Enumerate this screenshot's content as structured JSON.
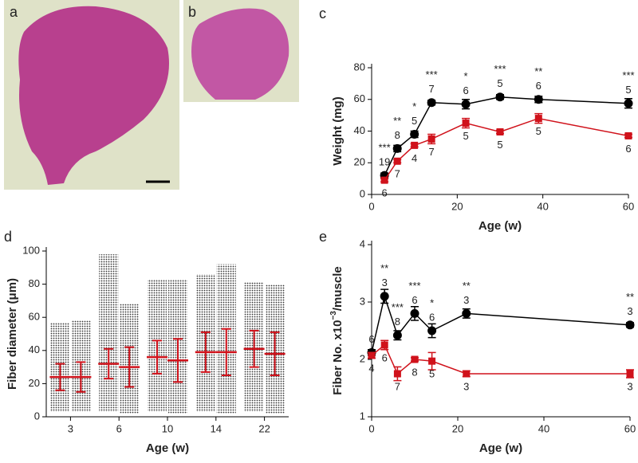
{
  "images": [
    {
      "label": "a"
    },
    {
      "label": "b"
    }
  ],
  "chart_data": [
    {
      "type": "line",
      "label": "c",
      "ylabel": "Weight (mg)",
      "xlabel": "Age (w)",
      "xlim": [
        0,
        60
      ],
      "xticks": [
        0,
        20,
        40,
        60
      ],
      "ylim": [
        0,
        80
      ],
      "yticks": [
        0,
        20,
        40,
        60,
        80
      ],
      "series": [
        {
          "color": "#000000",
          "marker": "circle",
          "x": [
            3,
            6,
            10,
            14,
            22,
            30,
            39,
            60
          ],
          "values": [
            12,
            29,
            38,
            58,
            57,
            61.5,
            60,
            57.5
          ],
          "errors": [
            1.5,
            2,
            2,
            1.5,
            3,
            1.5,
            2,
            3
          ],
          "n": [
            19,
            8,
            5,
            7,
            6,
            5,
            6,
            5
          ]
        },
        {
          "color": "#d0121b",
          "marker": "square",
          "x": [
            3,
            6,
            10,
            14,
            22,
            30,
            39,
            60
          ],
          "values": [
            9,
            21,
            31,
            35,
            45,
            39.5,
            48,
            37
          ],
          "errors": [
            1,
            1,
            1,
            3,
            3,
            1,
            3,
            1
          ],
          "n": [
            6,
            7,
            4,
            7,
            5,
            5,
            5,
            6
          ]
        }
      ],
      "significance": {
        "x": [
          3,
          6,
          10,
          14,
          22,
          30,
          39,
          60
        ],
        "labels": [
          "***",
          "**",
          "*",
          "***",
          "*",
          "***",
          "**",
          "***"
        ]
      }
    },
    {
      "type": "dotplot",
      "label": "d",
      "ylabel": "Fiber diameter (μm)",
      "xlabel": "Age (w)",
      "categories": [
        "3",
        "6",
        "10",
        "14",
        "22"
      ],
      "ylim": [
        0,
        100
      ],
      "yticks": [
        0,
        20,
        40,
        60,
        80,
        100
      ],
      "summary_color": "#d0121b",
      "groups": [
        {
          "means": [
            24,
            32,
            36,
            39,
            41
          ],
          "sds": [
            8,
            9,
            10,
            12,
            11
          ],
          "mins": [
            3,
            3,
            3,
            3,
            3
          ],
          "maxs": [
            57,
            98,
            83,
            86,
            81
          ]
        },
        {
          "means": [
            24,
            30,
            34,
            39,
            38
          ],
          "sds": [
            9,
            12,
            13,
            14,
            13
          ],
          "mins": [
            3,
            2,
            2,
            2,
            2
          ],
          "maxs": [
            58,
            68,
            83,
            92,
            80
          ]
        }
      ]
    },
    {
      "type": "line",
      "label": "e",
      "ylabel": [
        "Fiber No. x10",
        "−3",
        "/muscle"
      ],
      "xlabel": "Age (w)",
      "xlim": [
        0,
        60
      ],
      "xticks": [
        0,
        20,
        40,
        60
      ],
      "ylim": [
        1,
        4
      ],
      "yticks": [
        1,
        2,
        3,
        4
      ],
      "series": [
        {
          "color": "#000000",
          "marker": "circle",
          "x": [
            0,
            3,
            6,
            10,
            14,
            22,
            60
          ],
          "values": [
            2.12,
            3.1,
            2.42,
            2.8,
            2.5,
            2.8,
            2.6
          ],
          "errors": [
            0.05,
            0.12,
            0.08,
            0.12,
            0.12,
            0.08,
            0.04
          ],
          "n": [
            6,
            3,
            8,
            6,
            6,
            3,
            3
          ]
        },
        {
          "color": "#d0121b",
          "marker": "square",
          "x": [
            0,
            3,
            6,
            10,
            14,
            22,
            60
          ],
          "values": [
            2.07,
            2.25,
            1.75,
            2.0,
            1.97,
            1.75,
            1.75
          ],
          "errors": [
            0.05,
            0.08,
            0.12,
            0.03,
            0.15,
            0.05,
            0.07
          ],
          "n": [
            4,
            6,
            7,
            8,
            5,
            3,
            3
          ]
        }
      ],
      "significance": {
        "x": [
          3,
          6,
          10,
          14,
          22,
          60
        ],
        "labels": [
          "**",
          "***",
          "***",
          "*",
          "**",
          "**"
        ]
      }
    }
  ]
}
